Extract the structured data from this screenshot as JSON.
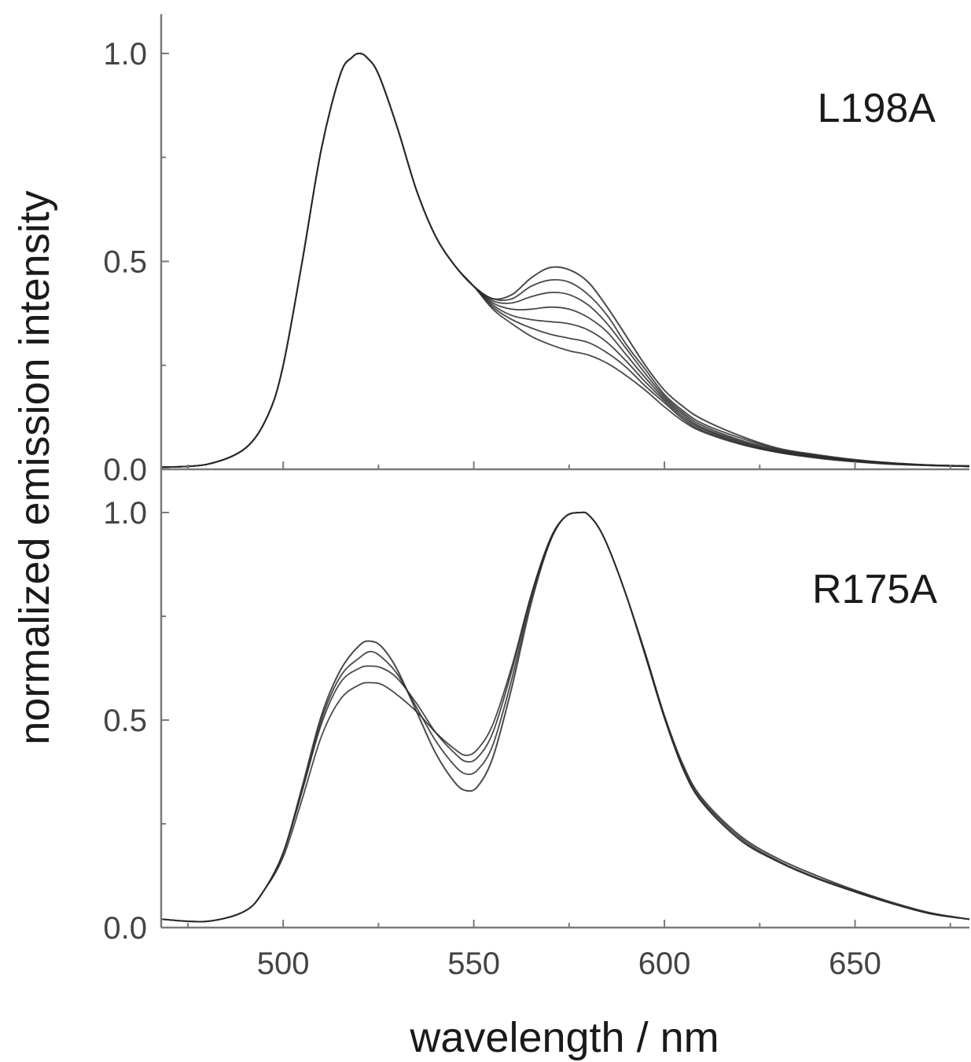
{
  "chart_data": [
    {
      "type": "line",
      "panel": "top",
      "label": "L198A",
      "xlim": [
        468,
        680
      ],
      "ylim": [
        0,
        1.1
      ],
      "yticks": [
        "0.0",
        "0.5",
        "1.0"
      ],
      "xticks": [
        500,
        550,
        600,
        650
      ],
      "series": [
        {
          "x": [
            468,
            480,
            490,
            496,
            500,
            505,
            510,
            515,
            518,
            520,
            522,
            525,
            530,
            535,
            540,
            545,
            550,
            555,
            560,
            565,
            570,
            575,
            580,
            585,
            590,
            595,
            600,
            605,
            610,
            620,
            630,
            640,
            650,
            660,
            670,
            680
          ],
          "values": [
            0.005,
            0.012,
            0.05,
            0.13,
            0.25,
            0.5,
            0.77,
            0.95,
            0.99,
            1.0,
            0.99,
            0.95,
            0.82,
            0.67,
            0.56,
            0.49,
            0.44,
            0.41,
            0.42,
            0.46,
            0.485,
            0.48,
            0.45,
            0.39,
            0.32,
            0.25,
            0.19,
            0.15,
            0.12,
            0.08,
            0.05,
            0.035,
            0.023,
            0.015,
            0.01,
            0.008
          ]
        },
        {
          "x": [
            468,
            480,
            490,
            496,
            500,
            505,
            510,
            515,
            518,
            520,
            522,
            525,
            530,
            535,
            540,
            545,
            550,
            555,
            560,
            565,
            570,
            575,
            580,
            585,
            590,
            595,
            600,
            605,
            610,
            620,
            630,
            640,
            650,
            660,
            670,
            680
          ],
          "values": [
            0.005,
            0.012,
            0.05,
            0.13,
            0.25,
            0.5,
            0.77,
            0.95,
            0.99,
            1.0,
            0.99,
            0.95,
            0.82,
            0.67,
            0.56,
            0.49,
            0.44,
            0.41,
            0.41,
            0.44,
            0.455,
            0.45,
            0.42,
            0.37,
            0.3,
            0.24,
            0.18,
            0.14,
            0.11,
            0.075,
            0.048,
            0.033,
            0.022,
            0.015,
            0.01,
            0.008
          ]
        },
        {
          "x": [
            468,
            480,
            490,
            496,
            500,
            505,
            510,
            515,
            518,
            520,
            522,
            525,
            530,
            535,
            540,
            545,
            550,
            555,
            560,
            565,
            570,
            575,
            580,
            585,
            590,
            595,
            600,
            605,
            610,
            620,
            630,
            640,
            650,
            660,
            670,
            680
          ],
          "values": [
            0.005,
            0.012,
            0.05,
            0.13,
            0.25,
            0.5,
            0.77,
            0.95,
            0.99,
            1.0,
            0.99,
            0.95,
            0.82,
            0.67,
            0.56,
            0.49,
            0.44,
            0.405,
            0.4,
            0.415,
            0.425,
            0.42,
            0.395,
            0.35,
            0.29,
            0.23,
            0.175,
            0.135,
            0.105,
            0.07,
            0.046,
            0.032,
            0.021,
            0.014,
            0.01,
            0.008
          ]
        },
        {
          "x": [
            468,
            480,
            490,
            496,
            500,
            505,
            510,
            515,
            518,
            520,
            522,
            525,
            530,
            535,
            540,
            545,
            550,
            555,
            560,
            565,
            570,
            575,
            580,
            585,
            590,
            595,
            600,
            605,
            610,
            620,
            630,
            640,
            650,
            660,
            670,
            680
          ],
          "values": [
            0.005,
            0.012,
            0.05,
            0.13,
            0.25,
            0.5,
            0.77,
            0.95,
            0.99,
            1.0,
            0.99,
            0.95,
            0.82,
            0.67,
            0.56,
            0.49,
            0.44,
            0.4,
            0.385,
            0.385,
            0.39,
            0.385,
            0.365,
            0.33,
            0.275,
            0.22,
            0.17,
            0.13,
            0.1,
            0.067,
            0.044,
            0.03,
            0.02,
            0.014,
            0.01,
            0.008
          ]
        },
        {
          "x": [
            468,
            480,
            490,
            496,
            500,
            505,
            510,
            515,
            518,
            520,
            522,
            525,
            530,
            535,
            540,
            545,
            550,
            555,
            560,
            565,
            570,
            575,
            580,
            585,
            590,
            595,
            600,
            605,
            610,
            620,
            630,
            640,
            650,
            660,
            670,
            680
          ],
          "values": [
            0.005,
            0.012,
            0.05,
            0.13,
            0.25,
            0.5,
            0.77,
            0.95,
            0.99,
            1.0,
            0.99,
            0.95,
            0.82,
            0.67,
            0.56,
            0.49,
            0.44,
            0.395,
            0.37,
            0.36,
            0.355,
            0.35,
            0.335,
            0.305,
            0.26,
            0.21,
            0.165,
            0.125,
            0.097,
            0.064,
            0.042,
            0.029,
            0.02,
            0.013,
            0.009,
            0.007
          ]
        },
        {
          "x": [
            468,
            480,
            490,
            496,
            500,
            505,
            510,
            515,
            518,
            520,
            522,
            525,
            530,
            535,
            540,
            545,
            550,
            555,
            560,
            565,
            570,
            575,
            580,
            585,
            590,
            595,
            600,
            605,
            610,
            620,
            630,
            640,
            650,
            660,
            670,
            680
          ],
          "values": [
            0.005,
            0.012,
            0.05,
            0.13,
            0.25,
            0.5,
            0.77,
            0.95,
            0.99,
            1.0,
            0.99,
            0.95,
            0.82,
            0.67,
            0.56,
            0.49,
            0.44,
            0.39,
            0.36,
            0.34,
            0.325,
            0.315,
            0.305,
            0.28,
            0.245,
            0.2,
            0.16,
            0.12,
            0.093,
            0.062,
            0.041,
            0.028,
            0.019,
            0.013,
            0.009,
            0.007
          ]
        },
        {
          "x": [
            468,
            480,
            490,
            496,
            500,
            505,
            510,
            515,
            518,
            520,
            522,
            525,
            530,
            535,
            540,
            545,
            550,
            555,
            560,
            565,
            570,
            575,
            580,
            585,
            590,
            595,
            600,
            605,
            610,
            620,
            630,
            640,
            650,
            660,
            670,
            680
          ],
          "values": [
            0.005,
            0.012,
            0.05,
            0.13,
            0.25,
            0.5,
            0.77,
            0.95,
            0.99,
            1.0,
            0.99,
            0.95,
            0.82,
            0.67,
            0.56,
            0.49,
            0.44,
            0.385,
            0.35,
            0.32,
            0.3,
            0.285,
            0.275,
            0.255,
            0.225,
            0.19,
            0.15,
            0.115,
            0.09,
            0.06,
            0.04,
            0.027,
            0.018,
            0.012,
            0.009,
            0.007
          ]
        }
      ]
    },
    {
      "type": "line",
      "panel": "bottom",
      "label": "R175A",
      "xlim": [
        468,
        680
      ],
      "ylim": [
        0,
        1.1
      ],
      "yticks": [
        "0.0",
        "0.5",
        "1.0"
      ],
      "xticks": [
        500,
        550,
        600,
        650
      ],
      "series": [
        {
          "x": [
            468,
            480,
            490,
            495,
            500,
            505,
            510,
            515,
            520,
            523,
            526,
            530,
            535,
            540,
            545,
            548,
            551,
            555,
            560,
            565,
            570,
            574,
            578,
            580,
            583,
            586,
            590,
            595,
            600,
            605,
            610,
            620,
            630,
            640,
            650,
            660,
            670,
            680
          ],
          "values": [
            0.02,
            0.015,
            0.04,
            0.09,
            0.18,
            0.34,
            0.51,
            0.62,
            0.68,
            0.69,
            0.675,
            0.62,
            0.52,
            0.42,
            0.35,
            0.33,
            0.34,
            0.41,
            0.58,
            0.78,
            0.93,
            0.99,
            1.0,
            0.995,
            0.96,
            0.9,
            0.8,
            0.66,
            0.51,
            0.39,
            0.31,
            0.22,
            0.165,
            0.125,
            0.09,
            0.06,
            0.035,
            0.02
          ]
        },
        {
          "x": [
            468,
            480,
            490,
            495,
            500,
            505,
            510,
            515,
            520,
            523,
            526,
            530,
            535,
            540,
            545,
            548,
            551,
            555,
            560,
            565,
            570,
            574,
            578,
            580,
            583,
            586,
            590,
            595,
            600,
            605,
            610,
            620,
            630,
            640,
            650,
            660,
            670,
            680
          ],
          "values": [
            0.02,
            0.015,
            0.04,
            0.09,
            0.18,
            0.33,
            0.5,
            0.605,
            0.65,
            0.665,
            0.65,
            0.61,
            0.53,
            0.45,
            0.39,
            0.37,
            0.38,
            0.44,
            0.6,
            0.79,
            0.93,
            0.99,
            1.0,
            0.995,
            0.96,
            0.9,
            0.8,
            0.66,
            0.51,
            0.385,
            0.305,
            0.215,
            0.16,
            0.12,
            0.088,
            0.058,
            0.034,
            0.02
          ]
        },
        {
          "x": [
            468,
            480,
            490,
            495,
            500,
            505,
            510,
            515,
            520,
            523,
            526,
            530,
            535,
            540,
            545,
            548,
            551,
            555,
            560,
            565,
            570,
            574,
            578,
            580,
            583,
            586,
            590,
            595,
            600,
            605,
            610,
            620,
            630,
            640,
            650,
            660,
            670,
            680
          ],
          "values": [
            0.02,
            0.015,
            0.04,
            0.09,
            0.18,
            0.33,
            0.49,
            0.59,
            0.625,
            0.63,
            0.625,
            0.6,
            0.54,
            0.47,
            0.42,
            0.4,
            0.41,
            0.47,
            0.62,
            0.8,
            0.935,
            0.99,
            1.0,
            0.995,
            0.96,
            0.9,
            0.8,
            0.655,
            0.505,
            0.38,
            0.3,
            0.21,
            0.158,
            0.118,
            0.086,
            0.057,
            0.033,
            0.02
          ]
        },
        {
          "x": [
            468,
            480,
            490,
            495,
            500,
            505,
            510,
            515,
            520,
            523,
            526,
            530,
            535,
            540,
            545,
            548,
            551,
            555,
            560,
            565,
            570,
            574,
            578,
            580,
            583,
            586,
            590,
            595,
            600,
            605,
            610,
            620,
            630,
            640,
            650,
            660,
            670,
            680
          ],
          "values": [
            0.02,
            0.015,
            0.04,
            0.09,
            0.17,
            0.31,
            0.46,
            0.55,
            0.585,
            0.59,
            0.585,
            0.56,
            0.52,
            0.47,
            0.43,
            0.415,
            0.43,
            0.49,
            0.63,
            0.8,
            0.935,
            0.99,
            1.0,
            0.995,
            0.96,
            0.9,
            0.8,
            0.655,
            0.505,
            0.38,
            0.3,
            0.21,
            0.158,
            0.118,
            0.086,
            0.057,
            0.033,
            0.02
          ]
        }
      ]
    }
  ],
  "axes": {
    "xlabel": "wavelength / nm",
    "ylabel": "normalized emission intensity"
  },
  "colors": {
    "axis": "#7a7a7a",
    "curve": "#2a2a2a",
    "tick_text": "#444444"
  }
}
